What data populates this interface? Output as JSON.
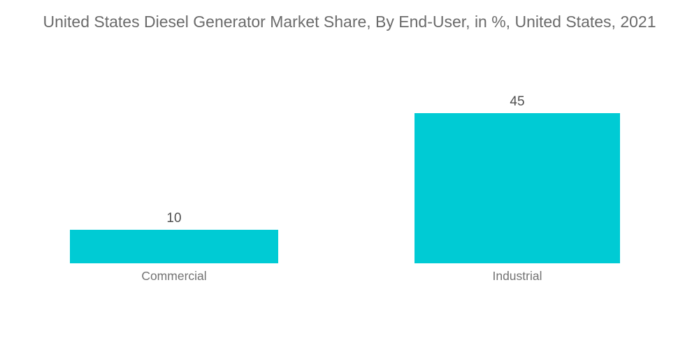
{
  "title": "United States Diesel Generator Market Share, By End-User, in %, United States, 2021",
  "colors": {
    "bar": "#00CBD4",
    "title_text": "#6B6B6B",
    "value_text": "#4F4F4F",
    "category_text": "#737373",
    "background": "#FFFFFF"
  },
  "chart_data": {
    "type": "bar",
    "title": "United States Diesel Generator Market Share, By End-User, in %, United States, 2021",
    "categories": [
      "Commercial",
      "Industrial"
    ],
    "values": [
      10,
      45
    ],
    "value_labels": [
      "10",
      "45"
    ],
    "xlabel": "",
    "ylabel": "",
    "unit": "%",
    "ylim": [
      0,
      45
    ],
    "grid": false,
    "legend": "none",
    "axes_visible": false,
    "bar_color": "#00CBD4"
  }
}
